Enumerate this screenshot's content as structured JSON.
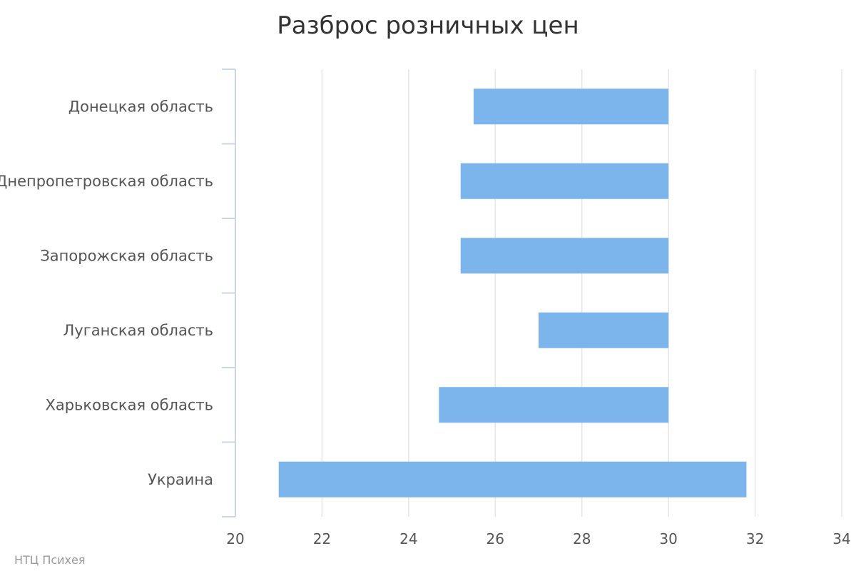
{
  "chart_data": {
    "type": "bar",
    "orientation": "horizontal",
    "title": "Разброс розничных цен",
    "categories": [
      "Донецкая область",
      "Днепропетровская область",
      "Запорожская область",
      "Луганская область",
      "Харьковская область",
      "Украина"
    ],
    "ranges": [
      [
        25.5,
        30.0
      ],
      [
        25.2,
        30.0
      ],
      [
        25.2,
        30.0
      ],
      [
        27.0,
        30.0
      ],
      [
        24.7,
        30.0
      ],
      [
        21.0,
        31.8
      ]
    ],
    "xlim": [
      20,
      34
    ],
    "xticks": [
      20,
      22,
      24,
      26,
      28,
      30,
      32,
      34
    ],
    "grid": true,
    "bar_color": "#7cb5ec"
  },
  "credit": "НТЦ Психея",
  "colors": {
    "grid": "#e6e6e6",
    "axis": "#ccd6eb",
    "text": "#555555"
  }
}
